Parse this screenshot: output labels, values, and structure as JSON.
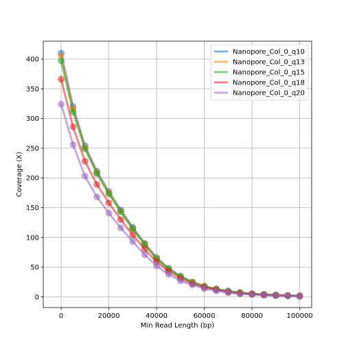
{
  "chart_data": {
    "type": "line",
    "title": "",
    "xlabel": "Min Read Length (bp)",
    "ylabel": "Coverage (X)",
    "xlim": [
      -7500,
      105000
    ],
    "ylim": [
      -18,
      430
    ],
    "xticks": [
      0,
      20000,
      40000,
      60000,
      80000,
      100000
    ],
    "yticks": [
      0,
      50,
      100,
      150,
      200,
      250,
      300,
      350,
      400
    ],
    "grid": true,
    "legend_position": "top-right",
    "x": [
      0,
      5000,
      10000,
      15000,
      20000,
      25000,
      30000,
      35000,
      40000,
      45000,
      50000,
      55000,
      60000,
      65000,
      70000,
      75000,
      80000,
      85000,
      90000,
      95000,
      100000
    ],
    "series": [
      {
        "name": "Nanopore_Col_0_q10",
        "color": "#1f77b4",
        "values": [
          410,
          320,
          254,
          211,
          177,
          146,
          117,
          90,
          66,
          48,
          35,
          25,
          18,
          13,
          10,
          7,
          5,
          4,
          3,
          2,
          1.5
        ]
      },
      {
        "name": "Nanopore_Col_0_q13",
        "color": "#ff7f0e",
        "values": [
          405,
          316,
          251,
          209,
          175,
          144,
          115,
          89,
          65,
          47,
          34,
          25,
          18,
          13,
          9,
          7,
          5,
          4,
          3,
          2,
          1.5
        ]
      },
      {
        "name": "Nanopore_Col_0_q15",
        "color": "#2ca02c",
        "values": [
          397,
          311,
          249,
          207,
          173,
          143,
          114,
          88,
          64,
          47,
          34,
          24,
          17,
          13,
          9,
          7,
          5,
          4,
          3,
          2,
          1.5
        ]
      },
      {
        "name": "Nanopore_Col_0_q18",
        "color": "#d62728",
        "values": [
          366,
          286,
          228,
          189,
          158,
          130,
          104,
          80,
          59,
          43,
          31,
          22,
          16,
          12,
          8,
          6,
          5,
          3,
          2.5,
          2,
          1.3
        ]
      },
      {
        "name": "Nanopore_Col_0_q20",
        "color": "#9467bd",
        "values": [
          324,
          256,
          203,
          168,
          141,
          116,
          93,
          71,
          52,
          38,
          27,
          20,
          14,
          10,
          7,
          5,
          4,
          3,
          2,
          1.6,
          1
        ]
      }
    ]
  }
}
